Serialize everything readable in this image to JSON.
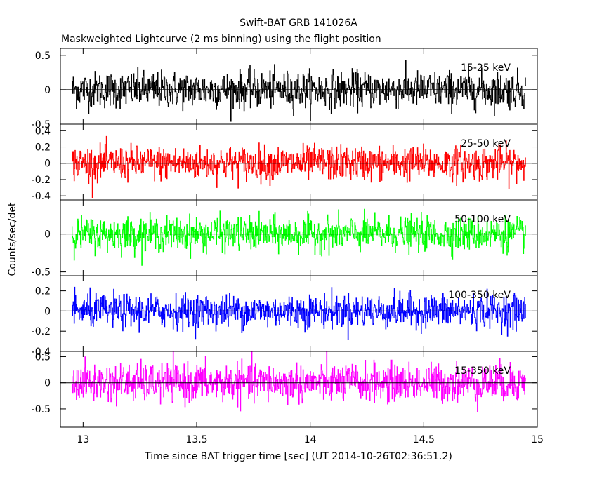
{
  "chart_data": {
    "type": "line",
    "title": "Swift-BAT GRB 141026A",
    "subtitle": "Maskweighted Lightcurve (2 ms binning) using the flight position",
    "xlabel": "Time since BAT trigger time [sec] (UT 2014-10-26T02:36:51.2)",
    "ylabel": "Counts/sec/det",
    "xlim": [
      12.9,
      15.0
    ],
    "x_ticks": [
      "13",
      "13.5",
      "14",
      "14.5",
      "15"
    ],
    "x_tick_values": [
      13,
      13.5,
      14,
      14.5,
      15
    ],
    "data_x_range": [
      12.95,
      14.95
    ],
    "panels": [
      {
        "name": "15-25 keV",
        "color": "#000000",
        "ylim": [
          -0.5,
          0.6
        ],
        "y_ticks": [
          "0.5",
          "0",
          "-0.5"
        ],
        "y_tick_values": [
          0.5,
          0,
          -0.5
        ],
        "noise_amplitude": 0.24,
        "mean": 0.0
      },
      {
        "name": "25-50 keV",
        "color": "#ff0000",
        "ylim": [
          -0.45,
          0.48
        ],
        "y_ticks": [
          "0.4",
          "0.2",
          "0",
          "-0.2",
          "-0.4"
        ],
        "y_tick_values": [
          0.4,
          0.2,
          0,
          -0.2,
          -0.4
        ],
        "noise_amplitude": 0.19,
        "mean": 0.0
      },
      {
        "name": "50-100 keV",
        "color": "#00ff00",
        "ylim": [
          -0.55,
          0.45
        ],
        "y_ticks": [
          "0",
          "-0.5"
        ],
        "y_tick_values": [
          0,
          -0.5
        ],
        "noise_amplitude": 0.2,
        "mean": 0.0
      },
      {
        "name": "100-350 keV",
        "color": "#0000ff",
        "ylim": [
          -0.4,
          0.35
        ],
        "y_ticks": [
          "0.2",
          "0",
          "-0.2",
          "-0.4"
        ],
        "y_tick_values": [
          0.2,
          0,
          -0.2,
          -0.4
        ],
        "noise_amplitude": 0.15,
        "mean": 0.0
      },
      {
        "name": "15-350 keV",
        "color": "#ff00ff",
        "ylim": [
          -0.85,
          0.6
        ],
        "y_ticks": [
          "0.5",
          "0",
          "-0.5"
        ],
        "y_tick_values": [
          0.5,
          0,
          -0.5
        ],
        "noise_amplitude": 0.33,
        "mean": 0.0
      }
    ]
  }
}
